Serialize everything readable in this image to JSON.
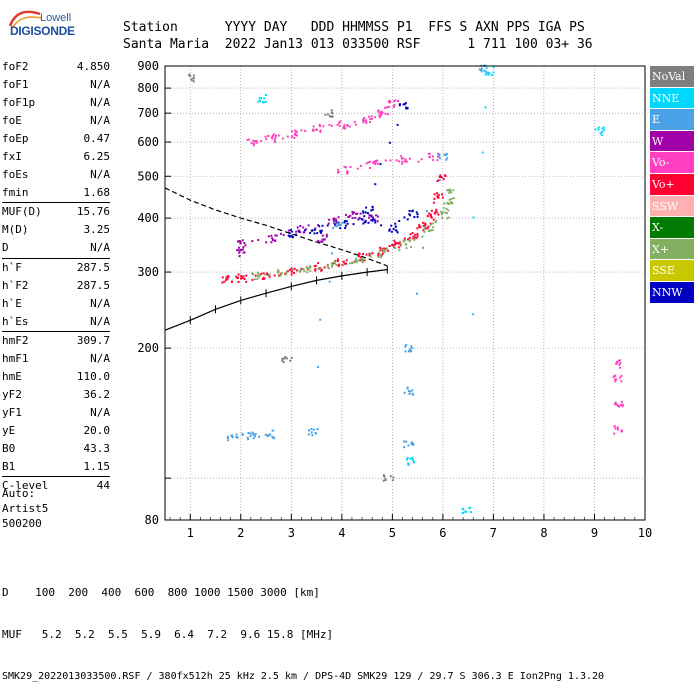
{
  "logo": {
    "brand": "Lowell",
    "name": "DIGISONDE"
  },
  "header": {
    "line1": "Station      YYYY DAY   DDD HHMMSS P1  FFS S AXN PPS IGA PS",
    "line2": "Santa Maria  2022 Jan13 013 033500 RSF      1 711 100 03+ 36"
  },
  "params": [
    {
      "name": "foF2",
      "value": "4.850"
    },
    {
      "name": "foF1",
      "value": "N/A"
    },
    {
      "name": "foF1p",
      "value": "N/A"
    },
    {
      "name": "foE",
      "value": "N/A"
    },
    {
      "name": "foEp",
      "value": "0.47"
    },
    {
      "name": "fxI",
      "value": "6.25"
    },
    {
      "name": "foEs",
      "value": "N/A"
    },
    {
      "name": "fmin",
      "value": "1.68"
    },
    {
      "name": "MUF(D)",
      "value": "15.76"
    },
    {
      "name": "M(D)",
      "value": "3.25"
    },
    {
      "name": "D",
      "value": "N/A"
    },
    {
      "name": "h`F",
      "value": "287.5"
    },
    {
      "name": "h`F2",
      "value": "287.5"
    },
    {
      "name": "h`E",
      "value": "N/A"
    },
    {
      "name": "h`Es",
      "value": "N/A"
    },
    {
      "name": "hmF2",
      "value": "309.7"
    },
    {
      "name": "hmF1",
      "value": "N/A"
    },
    {
      "name": "hmE",
      "value": "110.0"
    },
    {
      "name": "yF2",
      "value": "36.2"
    },
    {
      "name": "yF1",
      "value": "N/A"
    },
    {
      "name": "yE",
      "value": "20.0"
    },
    {
      "name": "B0",
      "value": "43.3"
    },
    {
      "name": "B1",
      "value": "1.15"
    },
    {
      "name": "C-level",
      "value": "44"
    }
  ],
  "auto": {
    "line1": "Auto:",
    "line2": "Artist5",
    "line3": "500200"
  },
  "legend": [
    {
      "label": "NoVal",
      "color": "#7f7f7f",
      "text": "#ffffff"
    },
    {
      "label": "NNE",
      "color": "#00d8ff",
      "text": "#ffffff"
    },
    {
      "label": "E",
      "color": "#4aa3e8",
      "text": "#ffffff"
    },
    {
      "label": "W",
      "color": "#a000a8",
      "text": "#ffffff"
    },
    {
      "label": "Vo-",
      "color": "#ff3fbf",
      "text": "#ffffff"
    },
    {
      "label": "Vo+",
      "color": "#ff0033",
      "text": "#ffffff"
    },
    {
      "label": "SSW",
      "color": "#ffb0b0",
      "text": "#ffffff"
    },
    {
      "label": "X-",
      "color": "#007a00",
      "text": "#ffffff"
    },
    {
      "label": "X+",
      "color": "#80b060",
      "text": "#ffffff"
    },
    {
      "label": "SSE",
      "color": "#c8c800",
      "text": "#ffffff"
    },
    {
      "label": "NNW",
      "color": "#0000c0",
      "text": "#ffffff"
    }
  ],
  "footer": {
    "line1": "D    100  200  400  600  800 1000 1500 3000 [km]",
    "line2": "MUF   5.2  5.2  5.5  5.9  6.4  7.2  9.6 15.8 [MHz]",
    "line3": "SMK29_2022013033500.RSF / 380fx512h 25 kHz 2.5 km / DPS-4D SMK29 129 / 29.7 S 306.3 E Ion2Png 1.3.20"
  },
  "chart_data": {
    "type": "scatter",
    "xlim": [
      0.5,
      10
    ],
    "ylim": [
      80,
      900
    ],
    "y_scale": "log",
    "x_ticks": [
      1,
      2,
      3,
      4,
      5,
      6,
      7,
      8,
      9,
      10
    ],
    "y_ticks": [
      80,
      100,
      200,
      300,
      400,
      500,
      600,
      700,
      800,
      900
    ],
    "x_tick_labels": [
      "1",
      "2",
      "3",
      "4",
      "5",
      "6",
      "7",
      "8",
      "9",
      "10"
    ],
    "y_tick_labels": [
      "80",
      "",
      "200",
      "300",
      "400",
      "500",
      "600",
      "700",
      "800",
      "900"
    ],
    "grid": true,
    "series": [
      {
        "name": "Vo+",
        "color": "#ff0033",
        "points": [
          [
            1.7,
            290
          ],
          [
            2.0,
            292
          ],
          [
            2.5,
            296
          ],
          [
            3.0,
            302
          ],
          [
            3.5,
            310
          ],
          [
            4.0,
            318
          ],
          [
            4.4,
            326
          ],
          [
            4.8,
            336
          ],
          [
            5.1,
            350
          ],
          [
            5.4,
            368
          ],
          [
            5.6,
            385
          ],
          [
            5.8,
            410
          ],
          [
            5.9,
            450
          ],
          [
            5.95,
            495
          ]
        ]
      },
      {
        "name": "X+",
        "color": "#80b060",
        "points": [
          [
            2.3,
            296
          ],
          [
            2.8,
            300
          ],
          [
            3.3,
            306
          ],
          [
            3.8,
            313
          ],
          [
            4.3,
            322
          ],
          [
            4.8,
            334
          ],
          [
            5.3,
            350
          ],
          [
            5.7,
            380
          ],
          [
            6.0,
            410
          ],
          [
            6.1,
            440
          ],
          [
            6.15,
            460
          ]
        ]
      },
      {
        "name": "W",
        "color": "#a000a8",
        "points": [
          [
            2.0,
            350
          ],
          [
            2.6,
            360
          ],
          [
            3.2,
            380
          ],
          [
            3.8,
            395
          ],
          [
            4.2,
            410
          ],
          [
            4.6,
            400
          ],
          [
            2.0,
            335
          ],
          [
            3.6,
            362
          ]
        ]
      },
      {
        "name": "NNW",
        "color": "#0000c0",
        "points": [
          [
            3.0,
            370
          ],
          [
            3.5,
            378
          ],
          [
            4.0,
            388
          ],
          [
            4.5,
            398
          ],
          [
            5.0,
            380
          ],
          [
            5.4,
            410
          ],
          [
            4.5,
            420
          ],
          [
            5.2,
            730
          ]
        ]
      },
      {
        "name": "Vo-",
        "color": "#ff3fbf",
        "points": [
          [
            2.2,
            600
          ],
          [
            2.6,
            615
          ],
          [
            3.0,
            628
          ],
          [
            3.5,
            648
          ],
          [
            4.0,
            662
          ],
          [
            4.5,
            680
          ],
          [
            4.8,
            700
          ],
          [
            5.0,
            740
          ],
          [
            4.0,
            520
          ],
          [
            4.6,
            535
          ],
          [
            5.2,
            548
          ],
          [
            5.8,
            555
          ]
        ]
      },
      {
        "name": "E",
        "color": "#4aa3e8",
        "points": [
          [
            1.8,
            125
          ],
          [
            2.2,
            126
          ],
          [
            2.6,
            127
          ],
          [
            3.4,
            128
          ],
          [
            3.9,
            385
          ],
          [
            5.3,
            120
          ],
          [
            5.3,
            160
          ],
          [
            5.3,
            200
          ],
          [
            6.0,
            560
          ],
          [
            6.8,
            890
          ]
        ]
      },
      {
        "name": "NNE",
        "color": "#00d8ff",
        "points": [
          [
            2.4,
            760
          ],
          [
            6.45,
            85
          ],
          [
            6.9,
            880
          ],
          [
            9.1,
            640
          ],
          [
            5.35,
            110
          ]
        ]
      },
      {
        "name": "Vo- vertical",
        "color": "#ff3fbf",
        "points": [
          [
            9.45,
            150
          ],
          [
            9.45,
            170
          ],
          [
            9.45,
            185
          ],
          [
            9.45,
            130
          ]
        ]
      },
      {
        "name": "NoVal",
        "color": "#7f7f7f",
        "points": [
          [
            1.05,
            850
          ],
          [
            3.73,
            700
          ],
          [
            2.9,
            190
          ],
          [
            4.9,
            100
          ]
        ]
      }
    ],
    "o_trace": {
      "color": "#000000",
      "points": [
        [
          0.5,
          220
        ],
        [
          1.0,
          232
        ],
        [
          1.5,
          246
        ],
        [
          2.0,
          258
        ],
        [
          2.5,
          268
        ],
        [
          3.0,
          278
        ],
        [
          3.5,
          287
        ],
        [
          4.0,
          294
        ],
        [
          4.5,
          300
        ],
        [
          4.9,
          304
        ]
      ]
    },
    "model_curve": {
      "color": "#000000",
      "dashed": true,
      "points": [
        [
          0.5,
          470
        ],
        [
          1.0,
          440
        ],
        [
          1.5,
          418
        ],
        [
          2.0,
          400
        ],
        [
          2.5,
          385
        ],
        [
          3.0,
          368
        ],
        [
          3.5,
          352
        ],
        [
          4.0,
          338
        ],
        [
          4.4,
          326
        ],
        [
          4.9,
          310
        ]
      ]
    }
  }
}
